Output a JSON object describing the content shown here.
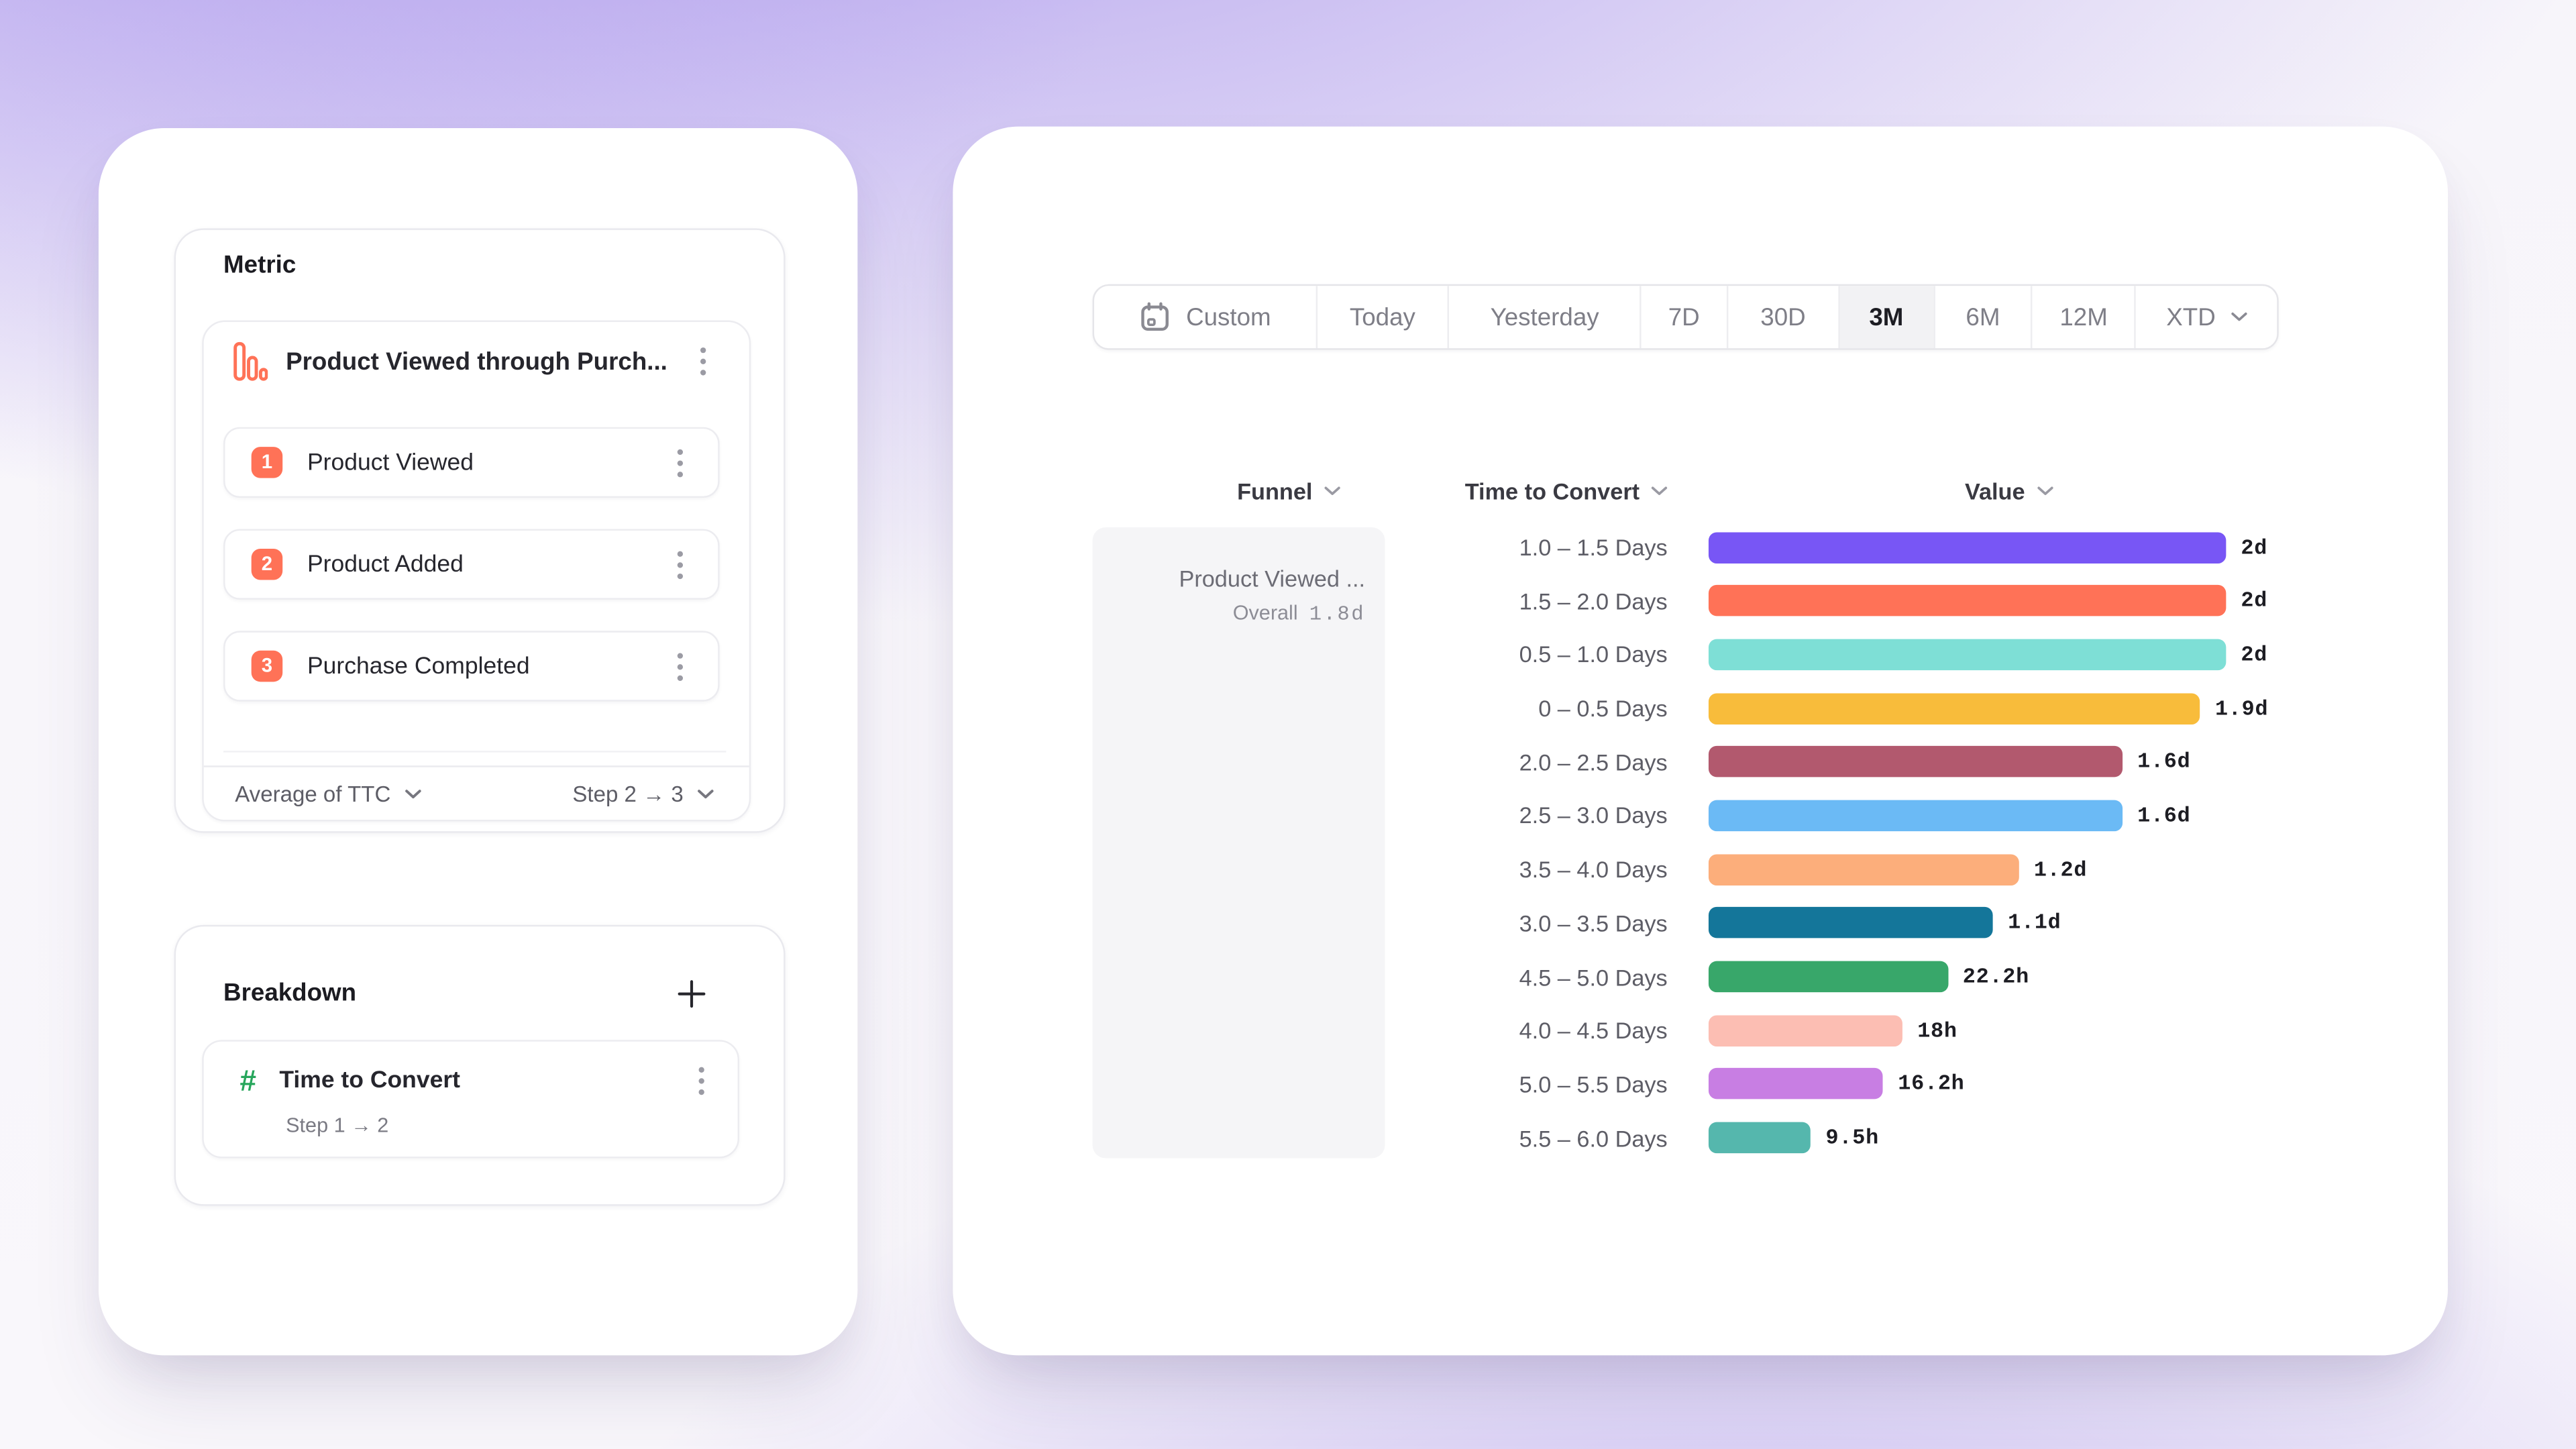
{
  "brand_colors": {
    "accent_orange": "#FF7257",
    "breakdown_green": "#26A65B",
    "selected_tab_bg": "#F2F2F4",
    "funnel_cell_bg": "#F5F5F7",
    "background_purple": "#8E72E9"
  },
  "left_panel": {
    "metric": {
      "title": "Metric",
      "funnel_title": "Product Viewed through Purch...",
      "steps": [
        {
          "number": "1",
          "label": "Product Viewed"
        },
        {
          "number": "2",
          "label": "Product Added"
        },
        {
          "number": "3",
          "label": "Purchase Completed"
        }
      ],
      "footer_left": "Average of TTC",
      "footer_right": "Step 2 → 3"
    },
    "breakdown": {
      "title": "Breakdown",
      "add_icon": "plus",
      "item": {
        "icon": "hash-icon",
        "label": "Time to Convert",
        "sublabel": "Step 1 → 2"
      }
    }
  },
  "right_panel": {
    "date_tabs": [
      {
        "label": "Custom",
        "icon": "calendar-icon",
        "selected": false
      },
      {
        "label": "Today",
        "selected": false
      },
      {
        "label": "Yesterday",
        "selected": false
      },
      {
        "label": "7D",
        "selected": false
      },
      {
        "label": "30D",
        "selected": false
      },
      {
        "label": "3M",
        "selected": true
      },
      {
        "label": "6M",
        "selected": false
      },
      {
        "label": "12M",
        "selected": false
      },
      {
        "label": "XTD",
        "chevron": true,
        "selected": false
      }
    ],
    "columns": {
      "funnel": "Funnel",
      "ttc": "Time to Convert",
      "value": "Value"
    },
    "funnel_cell": {
      "title": "Product Viewed ...",
      "overall_label": "Overall",
      "overall_value": "1.8d"
    }
  },
  "chart_data": {
    "type": "bar",
    "orientation": "horizontal",
    "title": "Time to Convert breakdown for Product Viewed funnel",
    "xlabel": "Value",
    "ylabel": "Time to Convert",
    "xmax_hours": 48,
    "grid": false,
    "categories": [
      "1.0 – 1.5 Days",
      "1.5 – 2.0 Days",
      "0.5 – 1.0 Days",
      "0 – 0.5 Days",
      "2.0 – 2.5 Days",
      "2.5 – 3.0 Days",
      "3.5 – 4.0 Days",
      "3.0 – 3.5 Days",
      "4.5 – 5.0 Days",
      "4.0 – 4.5 Days",
      "5.0 – 5.5 Days",
      "5.5 – 6.0 Days"
    ],
    "value_labels": [
      "2d",
      "2d",
      "2d",
      "1.9d",
      "1.6d",
      "1.6d",
      "1.2d",
      "1.1d",
      "22.2h",
      "18h",
      "16.2h",
      "9.5h"
    ],
    "values_hours": [
      48,
      48,
      48,
      45.6,
      38.4,
      38.4,
      28.8,
      26.4,
      22.2,
      18,
      16.2,
      9.5
    ],
    "colors": [
      "#7856F5",
      "#FF7257",
      "#7EDFD6",
      "#F8BC3B",
      "#B2596E",
      "#6BBAF5",
      "#FCAE7B",
      "#14769A",
      "#38A76A",
      "#FCBEB3",
      "#C87EE3",
      "#55B7AD"
    ]
  }
}
